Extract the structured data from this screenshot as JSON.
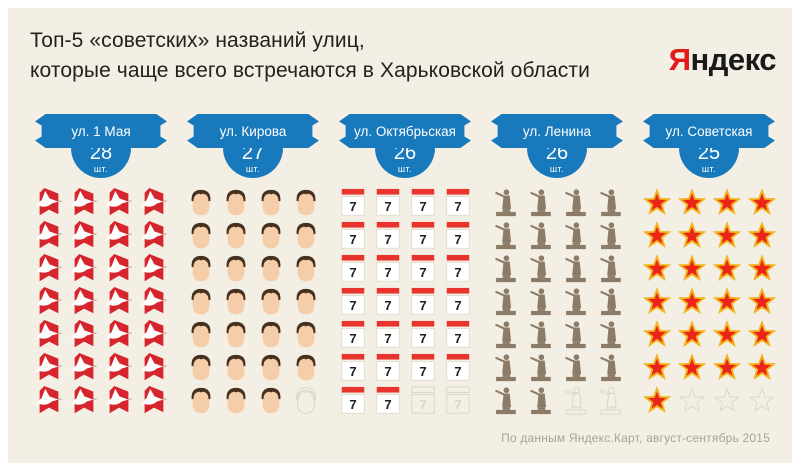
{
  "title": {
    "line1": "Топ-5 «советских» названий улиц,",
    "line2": "которые чаще всего встречаются в Харьковской области"
  },
  "logo": {
    "first_letter": "Я",
    "rest": "ндекс"
  },
  "units_label": "шт.",
  "footer": {
    "source": "По данным Яндекс.Карт, август-сентябрь 2015"
  },
  "colors": {
    "background": "#f4efe4",
    "frame": "#ffffff",
    "sign_blue": "#1879bd",
    "flag_red": "#d6252c",
    "calendar_red": "#e8342c",
    "star_red": "#ea2418",
    "star_gold": "#f2b21b",
    "skin": "#f6cda9",
    "hair": "#46311f",
    "statue": "#8b7b67",
    "ghost_outline": "#dcd6c6",
    "logo_red": "#e21a1a",
    "footer_gray": "#a9a296"
  },
  "chart_data": {
    "type": "pictogram",
    "title": "Топ-5 «советских» названий улиц, которые чаще всего встречаются в Харьковской области",
    "unit": "шт.",
    "grid": {
      "rows": 7,
      "cols": 4,
      "cells_per_column": 28
    },
    "calendar_digit": "7",
    "columns": [
      {
        "label": "ул. 1 Мая",
        "count": 28,
        "icon": "flag-dove"
      },
      {
        "label": "ул. Кирова",
        "count": 27,
        "icon": "kirov-face"
      },
      {
        "label": "ул. Октябрьская",
        "count": 26,
        "icon": "calendar-7"
      },
      {
        "label": "ул. Ленина",
        "count": 26,
        "icon": "lenin-statue"
      },
      {
        "label": "ул. Советская",
        "count": 25,
        "icon": "red-star"
      }
    ],
    "source": "По данным Яндекс.Карт, август-сентябрь 2015"
  }
}
